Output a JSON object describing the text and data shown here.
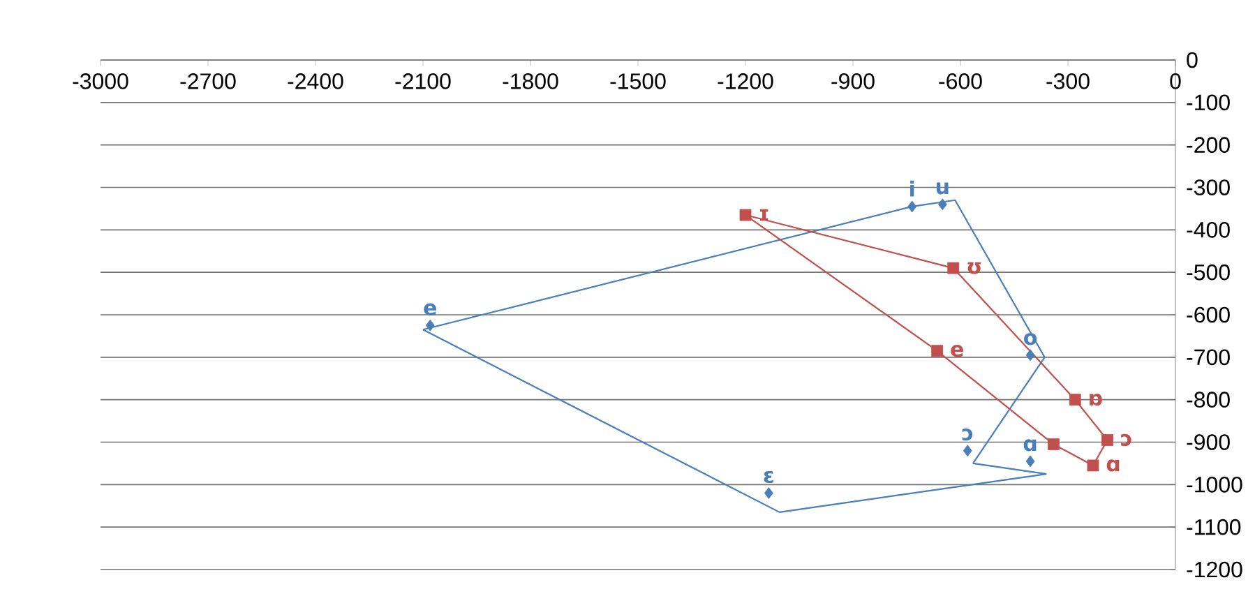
{
  "chart_data": {
    "type": "scatter",
    "xlim": [
      -3000,
      0
    ],
    "ylim": [
      -1200,
      0
    ],
    "xticks": [
      -3000,
      -2700,
      -2400,
      -2100,
      -1800,
      -1500,
      -1200,
      -900,
      -600,
      -300,
      0
    ],
    "yticks": [
      0,
      -100,
      -200,
      -300,
      -400,
      -500,
      -600,
      -700,
      -800,
      -900,
      -1000,
      -1100,
      -1200
    ],
    "grid": "y",
    "series": [
      {
        "color": "#4a7ebb",
        "marker": "diamond",
        "x": [
          -2080,
          -735,
          -650,
          -405,
          -580,
          -405,
          -1135
        ],
        "values": [
          -625,
          -345,
          -340,
          -695,
          -920,
          -945,
          -1020
        ],
        "value_labels": [
          "e",
          "i",
          "u",
          "o",
          "ɔ",
          "ɑ",
          "ɛ"
        ]
      },
      {
        "color": "#c0504d",
        "marker": "square",
        "x": [
          -620,
          -1200,
          -665,
          -340,
          -230,
          -190,
          -280
        ],
        "values": [
          -490,
          -365,
          -685,
          -905,
          -955,
          -895,
          -800
        ],
        "value_labels": [
          "ʊ",
          "ɪ",
          "e",
          null,
          "ɑ",
          "ɔ",
          "ɒ"
        ]
      },
      {
        "type": "line",
        "color": "#4a7ebb",
        "x": [
          -2100,
          -735,
          -615,
          -365
        ],
        "values": [
          -635,
          -345,
          -330,
          -700
        ]
      },
      {
        "type": "line",
        "color": "#4a7ebb",
        "x": [
          -565,
          -365
        ],
        "values": [
          -950,
          -700
        ]
      },
      {
        "type": "line",
        "color": "#4a7ebb",
        "x": [
          -565,
          -360
        ],
        "values": [
          -950,
          -975
        ]
      },
      {
        "type": "line",
        "color": "#4a7ebb",
        "x": [
          -2100,
          -1105,
          -360
        ],
        "values": [
          -635,
          -1065,
          -975
        ]
      },
      {
        "type": "line",
        "color": "#c0504d",
        "x": [
          -1200,
          -620
        ],
        "values": [
          -365,
          -490
        ]
      },
      {
        "type": "line",
        "color": "#c0504d",
        "x": [
          -1200,
          -665,
          -340,
          -230,
          -190
        ],
        "values": [
          -365,
          -685,
          -905,
          -955,
          -895
        ]
      },
      {
        "type": "line",
        "color": "#c0504d",
        "x": [
          -620,
          -280,
          -190
        ],
        "values": [
          -490,
          -800,
          -895
        ]
      }
    ]
  }
}
